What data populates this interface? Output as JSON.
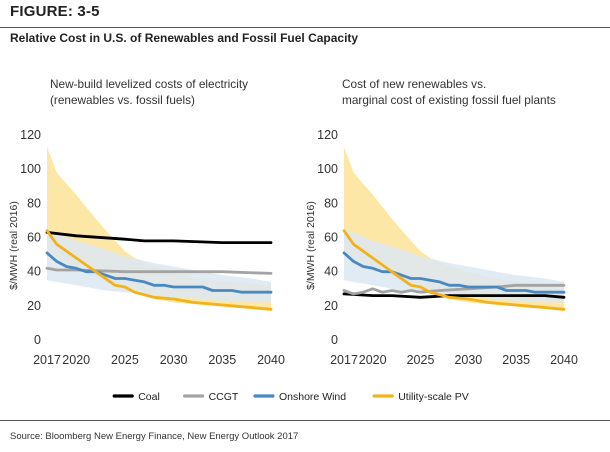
{
  "figure": {
    "label": "FIGURE: 3-5",
    "title": "Relative Cost in U.S. of Renewables and Fossil Fuel Capacity",
    "source": "Source: Bloomberg New Energy Finance, New Energy Outlook 2017"
  },
  "legend": [
    {
      "name": "Coal",
      "color": "#000000"
    },
    {
      "name": "CCGT",
      "color": "#a3a3a3"
    },
    {
      "name": "Onshore Wind",
      "color": "#4a88c2"
    },
    {
      "name": "Utility-scale PV",
      "color": "#f2b21b"
    }
  ],
  "chart_data": [
    {
      "type": "line",
      "title_lines": [
        "New-build levelized costs of electricity",
        "(renewables vs. fossil fuels)"
      ],
      "ylabel": "$/MWH (real 2016)",
      "xlabel": "",
      "xlim": [
        2017,
        2040
      ],
      "ylim": [
        0,
        120
      ],
      "xticks": [
        2017,
        2020,
        2025,
        2030,
        2035,
        2040
      ],
      "yticks": [
        0,
        20,
        40,
        60,
        80,
        100,
        120
      ],
      "grid": false,
      "bands": [
        {
          "name": "Utility-scale PV range",
          "color": "#fde7a6",
          "x": [
            2017,
            2018,
            2020,
            2022,
            2024,
            2025,
            2026,
            2028,
            2030,
            2032,
            2034,
            2036,
            2038,
            2040
          ],
          "upper": [
            113,
            98,
            85,
            71,
            58,
            52,
            48,
            43,
            40,
            37,
            35,
            34,
            33,
            32
          ],
          "lower": [
            52,
            48,
            42,
            37,
            31,
            29,
            27,
            24,
            22,
            21,
            20,
            19,
            18,
            17
          ]
        },
        {
          "name": "Onshore Wind range",
          "color": "#dce8f2",
          "x": [
            2017,
            2020,
            2023,
            2025,
            2028,
            2030,
            2033,
            2035,
            2038,
            2040
          ],
          "upper": [
            65,
            58,
            53,
            49,
            45,
            43,
            40,
            38,
            36,
            34
          ],
          "lower": [
            35,
            32,
            29,
            28,
            26,
            25,
            24,
            23,
            22,
            22
          ]
        }
      ],
      "series": [
        {
          "name": "Coal",
          "color": "#000000",
          "x": [
            2017,
            2020,
            2025,
            2027,
            2030,
            2035,
            2040
          ],
          "y": [
            63,
            61,
            59,
            58,
            58,
            57,
            57
          ]
        },
        {
          "name": "CCGT",
          "color": "#a3a3a3",
          "x": [
            2017,
            2018,
            2020,
            2025,
            2030,
            2035,
            2040
          ],
          "y": [
            42,
            41,
            41,
            40,
            40,
            40,
            39
          ]
        },
        {
          "name": "Onshore Wind",
          "color": "#4a88c2",
          "x": [
            2017,
            2018,
            2019,
            2020,
            2021,
            2022,
            2023,
            2024,
            2025,
            2026,
            2027,
            2028,
            2029,
            2030,
            2031,
            2032,
            2033,
            2034,
            2035,
            2036,
            2037,
            2038,
            2039,
            2040
          ],
          "y": [
            51,
            46,
            43,
            42,
            40,
            40,
            38,
            36,
            36,
            35,
            34,
            32,
            32,
            31,
            31,
            31,
            31,
            29,
            29,
            29,
            28,
            28,
            28,
            28
          ]
        },
        {
          "name": "Utility-scale PV",
          "color": "#f2b21b",
          "x": [
            2017,
            2018,
            2020,
            2022,
            2024,
            2025,
            2026,
            2028,
            2030,
            2032,
            2034,
            2036,
            2038,
            2040
          ],
          "y": [
            64,
            56,
            48,
            40,
            32,
            31,
            28,
            25,
            24,
            22,
            21,
            20,
            19,
            18
          ]
        }
      ]
    },
    {
      "type": "line",
      "title_lines": [
        "Cost of new renewables vs.",
        "marginal cost of existing fossil fuel plants"
      ],
      "ylabel": "$/MWH (real 2016)",
      "xlabel": "",
      "xlim": [
        2017,
        2040
      ],
      "ylim": [
        0,
        120
      ],
      "xticks": [
        2017,
        2020,
        2025,
        2030,
        2035,
        2040
      ],
      "yticks": [
        0,
        20,
        40,
        60,
        80,
        100,
        120
      ],
      "grid": false,
      "bands": [
        {
          "name": "Utility-scale PV range",
          "color": "#fde7a6",
          "x": [
            2017,
            2018,
            2020,
            2022,
            2024,
            2025,
            2026,
            2028,
            2030,
            2032,
            2034,
            2036,
            2038,
            2040
          ],
          "upper": [
            113,
            98,
            85,
            71,
            58,
            52,
            48,
            43,
            40,
            37,
            35,
            34,
            33,
            32
          ],
          "lower": [
            52,
            48,
            42,
            37,
            31,
            29,
            27,
            24,
            22,
            21,
            20,
            19,
            18,
            17
          ]
        },
        {
          "name": "Onshore Wind range",
          "color": "#dce8f2",
          "x": [
            2017,
            2020,
            2023,
            2025,
            2028,
            2030,
            2033,
            2035,
            2038,
            2040
          ],
          "upper": [
            65,
            58,
            53,
            49,
            45,
            43,
            40,
            38,
            36,
            34
          ],
          "lower": [
            35,
            32,
            29,
            28,
            26,
            25,
            24,
            23,
            22,
            22
          ]
        }
      ],
      "series": [
        {
          "name": "Coal",
          "color": "#000000",
          "x": [
            2017,
            2020,
            2022,
            2025,
            2028,
            2030,
            2035,
            2038,
            2040
          ],
          "y": [
            27,
            26,
            26,
            25,
            26,
            26,
            26,
            26,
            25
          ]
        },
        {
          "name": "CCGT",
          "color": "#a3a3a3",
          "x": [
            2017,
            2018,
            2019,
            2020,
            2021,
            2022,
            2023,
            2024,
            2025,
            2027,
            2030,
            2033,
            2035,
            2038,
            2040
          ],
          "y": [
            29,
            27,
            28,
            30,
            28,
            29,
            28,
            29,
            28,
            29,
            30,
            31,
            32,
            32,
            32
          ]
        },
        {
          "name": "Onshore Wind",
          "color": "#4a88c2",
          "x": [
            2017,
            2018,
            2019,
            2020,
            2021,
            2022,
            2023,
            2024,
            2025,
            2026,
            2027,
            2028,
            2029,
            2030,
            2031,
            2032,
            2033,
            2034,
            2035,
            2036,
            2037,
            2038,
            2039,
            2040
          ],
          "y": [
            51,
            46,
            43,
            42,
            40,
            40,
            38,
            36,
            36,
            35,
            34,
            32,
            32,
            31,
            31,
            31,
            31,
            29,
            29,
            29,
            28,
            28,
            28,
            28
          ]
        },
        {
          "name": "Utility-scale PV",
          "color": "#f2b21b",
          "x": [
            2017,
            2018,
            2020,
            2022,
            2024,
            2025,
            2026,
            2028,
            2030,
            2032,
            2034,
            2036,
            2038,
            2040
          ],
          "y": [
            64,
            56,
            48,
            40,
            32,
            31,
            28,
            25,
            24,
            22,
            21,
            20,
            19,
            18
          ]
        }
      ]
    }
  ]
}
